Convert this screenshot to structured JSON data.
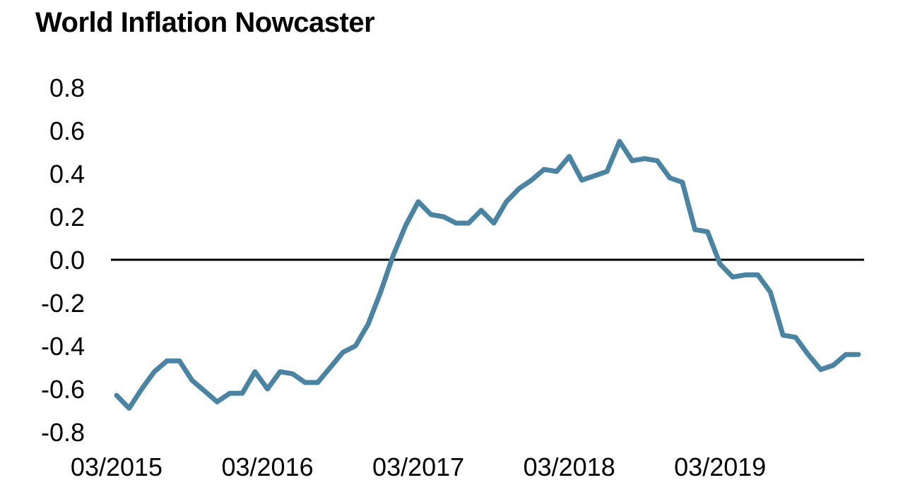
{
  "chart_data": {
    "type": "line",
    "title": "World Inflation Nowcaster",
    "xlabel": "",
    "ylabel": "",
    "ylim": [
      -0.8,
      0.8
    ],
    "y_ticks": [
      "0.8",
      "0.6",
      "0.4",
      "0.2",
      "0.0",
      "-0.2",
      "-0.4",
      "-0.6",
      "-0.8"
    ],
    "y_tick_values": [
      0.8,
      0.6,
      0.4,
      0.2,
      0.0,
      -0.2,
      -0.4,
      -0.6,
      -0.8
    ],
    "x_ticks": [
      "03/2015",
      "03/2016",
      "03/2017",
      "03/2018",
      "03/2019"
    ],
    "zero_line": true,
    "grid": false,
    "colors": {
      "line": "#4A84A2",
      "zero_line": "#000000"
    },
    "series": [
      {
        "x": [
          "03/2015",
          "04/2015",
          "05/2015",
          "06/2015",
          "07/2015",
          "08/2015",
          "09/2015",
          "10/2015",
          "11/2015",
          "12/2015",
          "01/2016",
          "02/2016",
          "03/2016",
          "04/2016",
          "05/2016",
          "06/2016",
          "07/2016",
          "08/2016",
          "09/2016",
          "10/2016",
          "11/2016",
          "12/2016",
          "01/2017",
          "02/2017",
          "03/2017",
          "04/2017",
          "05/2017",
          "06/2017",
          "07/2017",
          "08/2017",
          "09/2017",
          "10/2017",
          "11/2017",
          "12/2017",
          "01/2018",
          "02/2018",
          "03/2018",
          "04/2018",
          "05/2018",
          "06/2018",
          "07/2018",
          "08/2018",
          "09/2018",
          "10/2018",
          "11/2018",
          "12/2018",
          "01/2019",
          "02/2019",
          "03/2019",
          "04/2019",
          "05/2019",
          "06/2019",
          "07/2019",
          "08/2019",
          "09/2019",
          "10/2019",
          "11/2019",
          "12/2019",
          "01/2020",
          "02/2020"
        ],
        "values": [
          -0.63,
          -0.69,
          -0.6,
          -0.52,
          -0.47,
          -0.47,
          -0.56,
          -0.61,
          -0.66,
          -0.62,
          -0.62,
          -0.52,
          -0.6,
          -0.52,
          -0.53,
          -0.57,
          -0.57,
          -0.5,
          -0.43,
          -0.4,
          -0.3,
          -0.15,
          0.02,
          0.16,
          0.27,
          0.21,
          0.2,
          0.17,
          0.17,
          0.23,
          0.17,
          0.27,
          0.33,
          0.37,
          0.42,
          0.41,
          0.48,
          0.37,
          0.39,
          0.41,
          0.55,
          0.46,
          0.47,
          0.46,
          0.38,
          0.36,
          0.14,
          0.13,
          -0.02,
          -0.08,
          -0.07,
          -0.07,
          -0.15,
          -0.35,
          -0.36,
          -0.44,
          -0.51,
          -0.49,
          -0.44,
          -0.44
        ]
      }
    ]
  }
}
